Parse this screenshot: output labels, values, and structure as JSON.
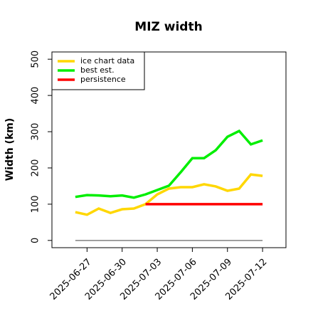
{
  "chart_data": {
    "type": "line",
    "title": "MIZ width",
    "y_label": "Width (km)",
    "x": [
      "2025-06-26",
      "2025-06-27",
      "2025-06-28",
      "2025-06-29",
      "2025-06-30",
      "2025-07-01",
      "2025-07-02",
      "2025-07-03",
      "2025-07-04",
      "2025-07-05",
      "2025-07-06",
      "2025-07-07",
      "2025-07-08",
      "2025-07-09",
      "2025-07-10",
      "2025-07-11",
      "2025-07-12"
    ],
    "series": [
      {
        "color": "#808080",
        "values": [
          0,
          0,
          0,
          0,
          0,
          0,
          0,
          0,
          0,
          0,
          0,
          0,
          0,
          0,
          0,
          0,
          0
        ]
      },
      {
        "name": "ice chart data",
        "color": "#ffd700",
        "values": [
          78,
          71,
          88,
          76,
          86,
          88,
          100,
          127,
          143,
          147,
          147,
          155,
          149,
          137,
          143,
          182,
          178
        ]
      },
      {
        "name": "best est.",
        "color": "#00ee00",
        "values": [
          120,
          125,
          124,
          122,
          124,
          118,
          127,
          139,
          151,
          188,
          227,
          227,
          249,
          286,
          302,
          265,
          276
        ]
      },
      {
        "name": "persistence",
        "color": "#ff0000",
        "values": [
          null,
          null,
          null,
          null,
          null,
          null,
          100,
          100,
          100,
          100,
          100,
          100,
          100,
          100,
          100,
          100,
          100
        ]
      }
    ],
    "xlim": [
      "2025-06-24",
      "2025-07-14"
    ],
    "xticks": [
      "2025-06-27",
      "2025-06-30",
      "2025-07-03",
      "2025-07-06",
      "2025-07-09",
      "2025-07-12"
    ],
    "ylim": [
      -20,
      520
    ],
    "yticks": [
      0,
      100,
      200,
      300,
      400,
      500
    ],
    "legend": "top-left"
  }
}
